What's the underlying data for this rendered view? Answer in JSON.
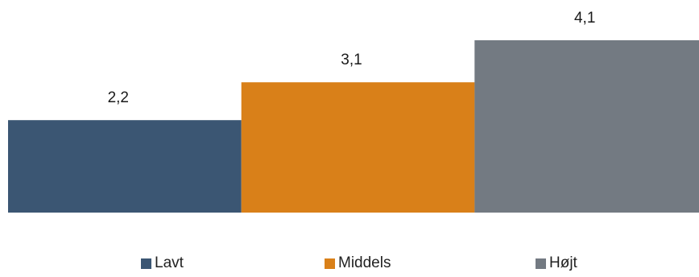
{
  "chart_data": {
    "type": "bar",
    "categories": [
      "Lavt",
      "Middels",
      "Højt"
    ],
    "values": [
      2.2,
      3.1,
      4.1
    ],
    "value_labels": [
      "2,2",
      "3,1",
      "4,1"
    ],
    "colors": [
      "#3b5673",
      "#d98019",
      "#737a82"
    ],
    "title": "",
    "xlabel": "",
    "ylabel": "",
    "ylim": [
      0,
      4.1
    ],
    "grid": false,
    "legend_position": "bottom"
  },
  "legend": {
    "items": [
      {
        "label": "Lavt",
        "color": "#3b5673"
      },
      {
        "label": "Middels",
        "color": "#d98019"
      },
      {
        "label": "Højt",
        "color": "#737a82"
      }
    ]
  }
}
